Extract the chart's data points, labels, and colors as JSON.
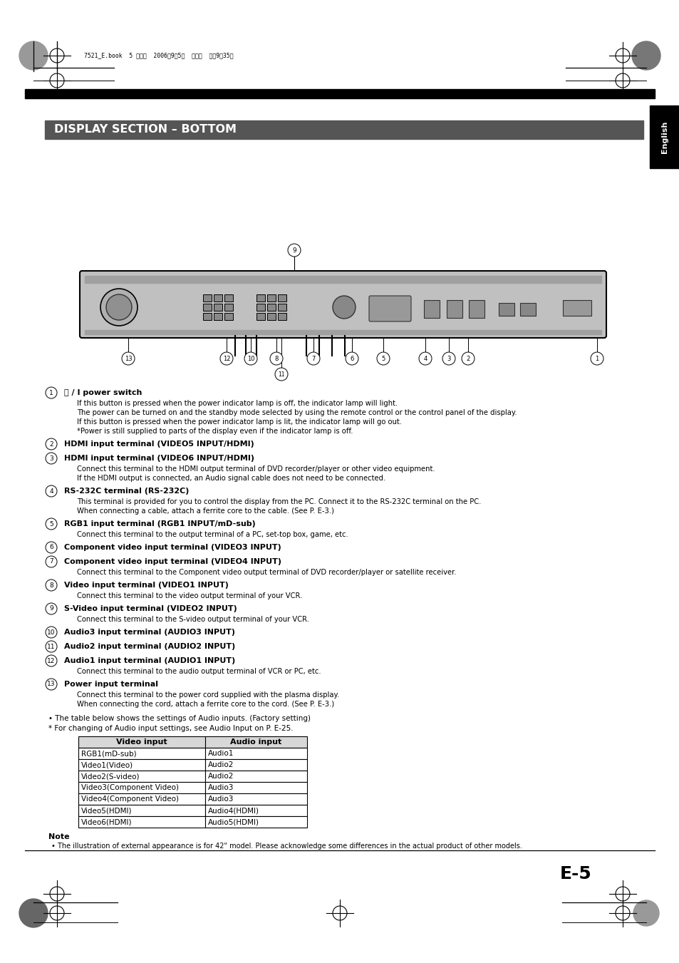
{
  "page_bg": "#ffffff",
  "header_bar_color": "#000000",
  "section_header_bg": "#555555",
  "section_header_text": "DISPLAY SECTION – BOTTOM",
  "section_header_text_color": "#ffffff",
  "english_tab_bg": "#000000",
  "english_tab_text": "English",
  "english_tab_text_color": "#ffffff",
  "header_small_text": "7521_E.book  5 ページ  2006年9よ5日  火曜日  午後9時35分",
  "page_number": "E-5",
  "items": [
    {
      "num": "1",
      "bold": "ⓘ / I power switch",
      "lines": [
        "If this button is pressed when the power indicator lamp is off, the indicator lamp will light.",
        "The power can be turned on and the standby mode selected by using the remote control or the control panel of the display.",
        "If this button is pressed when the power indicator lamp is lit, the indicator lamp will go out.",
        "*Power is still supplied to parts of the display even if the indicator lamp is off."
      ]
    },
    {
      "num": "2",
      "bold": "HDMI input terminal (VIDEO5 INPUT/HDMI)",
      "lines": []
    },
    {
      "num": "3",
      "bold": "HDMI input terminal (VIDEO6 INPUT/HDMI)",
      "lines": [
        "Connect this terminal to the HDMI output terminal of DVD recorder/player or other video equipment.",
        "If the HDMI output is connected, an Audio signal cable does not need to be connected."
      ]
    },
    {
      "num": "4",
      "bold": "RS-232C terminal (RS-232C)",
      "lines": [
        "This terminal is provided for you to control the display from the PC. Connect it to the RS-232C terminal on the PC.",
        "When connecting a cable, attach a ferrite core to the cable. (See P. E-3.)"
      ]
    },
    {
      "num": "5",
      "bold": "RGB1 input terminal (RGB1 INPUT/mD-sub)",
      "lines": [
        "Connect this terminal to the output terminal of a PC, set-top box, game, etc."
      ]
    },
    {
      "num": "6",
      "bold": "Component video input terminal (VIDEO3 INPUT)",
      "lines": []
    },
    {
      "num": "7",
      "bold": "Component video input terminal (VIDEO4 INPUT)",
      "lines": [
        "Connect this terminal to the Component video output terminal of DVD recorder/player or satellite receiver."
      ]
    },
    {
      "num": "8",
      "bold": "Video input terminal (VIDEO1 INPUT)",
      "lines": [
        "Connect this terminal to the video output terminal of your VCR."
      ]
    },
    {
      "num": "9",
      "bold": "S-Video input terminal (VIDEO2 INPUT)",
      "lines": [
        "Connect this terminal to the S-video output terminal of your VCR."
      ]
    },
    {
      "num": "10",
      "bold": "Audio3 input terminal (AUDIO3 INPUT)",
      "lines": []
    },
    {
      "num": "11",
      "bold": "Audio2 input terminal (AUDIO2 INPUT)",
      "lines": []
    },
    {
      "num": "12",
      "bold": "Audio1 input terminal (AUDIO1 INPUT)",
      "lines": [
        "Connect this terminal to the audio output terminal of VCR or PC, etc."
      ]
    },
    {
      "num": "13",
      "bold": "Power input terminal",
      "lines": [
        "Connect this terminal to the power cord supplied with the plasma display.",
        "When connecting the cord, attach a ferrite core to the cord. (See P. E-3.)"
      ]
    }
  ],
  "bullet1": "• The table below shows the settings of Audio inputs. (Factory setting)",
  "bullet2": "* For changing of Audio input settings, see Audio Input on P. E-25.",
  "table_header": [
    "Video input",
    "Audio input"
  ],
  "table_rows": [
    [
      "RGB1(mD-sub)",
      "Audio1"
    ],
    [
      "Video1(Video)",
      "Audio2"
    ],
    [
      "Video2(S-video)",
      "Audio2"
    ],
    [
      "Video3(Component Video)",
      "Audio3"
    ],
    [
      "Video4(Component Video)",
      "Audio3"
    ],
    [
      "Video5(HDMI)",
      "Audio4(HDMI)"
    ],
    [
      "Video6(HDMI)",
      "Audio5(HDMI)"
    ]
  ],
  "note_header": "Note",
  "note_text": "• The illustration of external appearance is for 42\" model. Please acknowledge some differences in the actual product of other models."
}
